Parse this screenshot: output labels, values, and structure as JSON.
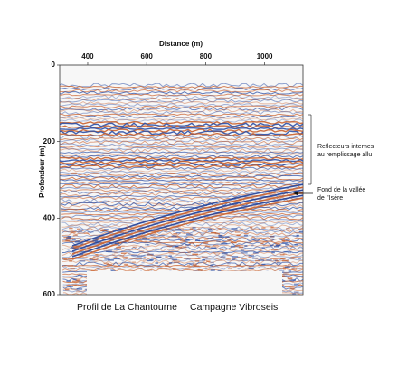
{
  "chart_data": {
    "type": "seismic",
    "title": "Distance (m)",
    "y_label": "Profondeur (m)",
    "xlim": [
      305,
      1130
    ],
    "xticks": [
      400,
      600,
      800,
      1000
    ],
    "ylim": [
      0,
      600
    ],
    "yticks": [
      0,
      200,
      400,
      600
    ],
    "y_inverted": true,
    "annotations": [
      {
        "lines": [
          "Reflecteurs internes",
          "au remplissage allu"
        ]
      },
      {
        "lines": [
          "Fond de la vallée",
          "de l'Isère"
        ]
      }
    ],
    "captions": [
      "Profil de La Chantourne",
      "Campagne Vibroseis"
    ]
  }
}
